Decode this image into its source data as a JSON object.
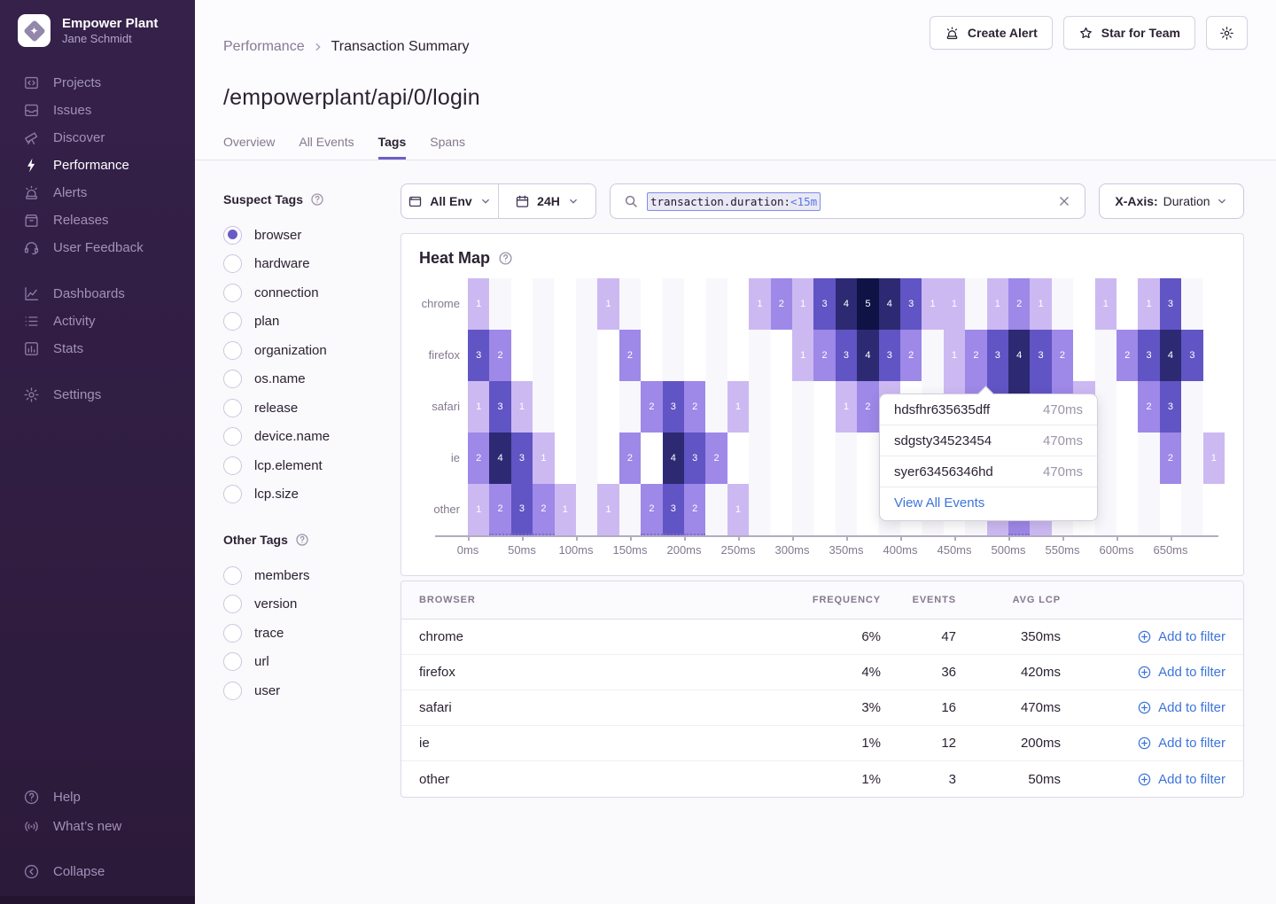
{
  "colors": {
    "accent": "#6c5fc7",
    "link": "#3d74db",
    "sidebar_bg": "#2f1d3d"
  },
  "sidebar": {
    "org": "Empower Plant",
    "user": "Jane Schmidt",
    "logo_icon": "diamond-star-icon",
    "sections": [
      {
        "items": [
          {
            "icon": "projects",
            "label": "Projects",
            "active": false
          },
          {
            "icon": "issues",
            "label": "Issues",
            "active": false
          },
          {
            "icon": "discover",
            "label": "Discover",
            "active": false
          },
          {
            "icon": "performance",
            "label": "Performance",
            "active": true
          },
          {
            "icon": "alerts",
            "label": "Alerts",
            "active": false
          },
          {
            "icon": "releases",
            "label": "Releases",
            "active": false
          },
          {
            "icon": "user-feedback",
            "label": "User Feedback",
            "active": false
          }
        ]
      },
      {
        "items": [
          {
            "icon": "dashboards",
            "label": "Dashboards",
            "active": false
          },
          {
            "icon": "activity",
            "label": "Activity",
            "active": false
          },
          {
            "icon": "stats",
            "label": "Stats",
            "active": false
          }
        ]
      },
      {
        "items": [
          {
            "icon": "settings",
            "label": "Settings",
            "active": false
          }
        ]
      }
    ],
    "footer": [
      {
        "icon": "help",
        "label": "Help"
      },
      {
        "icon": "whats-new",
        "label": "What’s new"
      }
    ],
    "collapse": {
      "icon": "collapse",
      "label": "Collapse"
    }
  },
  "header": {
    "breadcrumb": [
      "Performance",
      "Transaction Summary"
    ],
    "title": "/empowerplant/api/0/login",
    "tabs": [
      {
        "label": "Overview",
        "active": false
      },
      {
        "label": "All Events",
        "active": false
      },
      {
        "label": "Tags",
        "active": true
      },
      {
        "label": "Spans",
        "active": false
      }
    ],
    "actions": {
      "create_alert": "Create Alert",
      "star_for_team": "Star for Team",
      "settings_icon": "gear-icon"
    }
  },
  "filters": {
    "suspect": {
      "title": "Suspect Tags",
      "items": [
        {
          "label": "browser",
          "selected": true
        },
        {
          "label": "hardware",
          "selected": false
        },
        {
          "label": "connection",
          "selected": false
        },
        {
          "label": "plan",
          "selected": false
        },
        {
          "label": "organization",
          "selected": false
        },
        {
          "label": "os.name",
          "selected": false
        },
        {
          "label": "release",
          "selected": false
        },
        {
          "label": "device.name",
          "selected": false
        },
        {
          "label": "lcp.element",
          "selected": false
        },
        {
          "label": "lcp.size",
          "selected": false
        }
      ]
    },
    "other": {
      "title": "Other Tags",
      "items": [
        {
          "label": "members",
          "selected": false
        },
        {
          "label": "version",
          "selected": false
        },
        {
          "label": "trace",
          "selected": false
        },
        {
          "label": "url",
          "selected": false
        },
        {
          "label": "user",
          "selected": false
        }
      ]
    }
  },
  "controls": {
    "env": "All Env",
    "range": "24H",
    "search_token": {
      "key": "transaction.duration:",
      "value": "<15m"
    },
    "xaxis": {
      "label": "X-Axis:",
      "value": "Duration"
    }
  },
  "chart_data": {
    "type": "heatmap",
    "title": "Heat Map",
    "x_unit": "ms",
    "col_width_ms": 20,
    "n_cols": 35,
    "x_range_ms": [
      0,
      700
    ],
    "x_ticks": [
      "0ms",
      "50ms",
      "100ms",
      "150ms",
      "200ms",
      "250ms",
      "300ms",
      "350ms",
      "400ms",
      "450ms",
      "500ms",
      "550ms",
      "600ms",
      "650ms"
    ],
    "value_colors": {
      "1": "#ccb9f2",
      "2": "#9e88e8",
      "3": "#6154c4",
      "4": "#2d2a73",
      "5": "#0e1245"
    },
    "rows": [
      {
        "name": "chrome",
        "cells": [
          [
            0,
            1
          ],
          [
            6,
            1
          ],
          [
            13,
            1
          ],
          [
            14,
            2
          ],
          [
            15,
            1
          ],
          [
            16,
            3
          ],
          [
            17,
            4
          ],
          [
            18,
            5
          ],
          [
            19,
            4
          ],
          [
            20,
            3
          ],
          [
            21,
            1
          ],
          [
            22,
            1
          ],
          [
            24,
            1
          ],
          [
            25,
            2
          ],
          [
            26,
            1
          ],
          [
            29,
            1
          ],
          [
            31,
            1
          ],
          [
            32,
            3
          ]
        ]
      },
      {
        "name": "firefox",
        "cells": [
          [
            0,
            3
          ],
          [
            1,
            2
          ],
          [
            7,
            2
          ],
          [
            15,
            1
          ],
          [
            16,
            2
          ],
          [
            17,
            3
          ],
          [
            18,
            4
          ],
          [
            19,
            3
          ],
          [
            20,
            2
          ],
          [
            22,
            1
          ],
          [
            23,
            2
          ],
          [
            24,
            3
          ],
          [
            25,
            4
          ],
          [
            26,
            3
          ],
          [
            27,
            2
          ],
          [
            30,
            2
          ],
          [
            31,
            3
          ],
          [
            32,
            4
          ],
          [
            33,
            3
          ]
        ]
      },
      {
        "name": "safari",
        "cells": [
          [
            0,
            1
          ],
          [
            1,
            3
          ],
          [
            2,
            1
          ],
          [
            8,
            2
          ],
          [
            9,
            3
          ],
          [
            10,
            2
          ],
          [
            12,
            1
          ],
          [
            17,
            1
          ],
          [
            18,
            2
          ],
          [
            19,
            1
          ],
          [
            22,
            1
          ],
          [
            23,
            2
          ],
          [
            24,
            3
          ],
          [
            25,
            4
          ],
          [
            26,
            3
          ],
          [
            27,
            2
          ],
          [
            28,
            1
          ],
          [
            31,
            2
          ],
          [
            32,
            3
          ]
        ]
      },
      {
        "name": "ie",
        "cells": [
          [
            0,
            2
          ],
          [
            1,
            4
          ],
          [
            2,
            3
          ],
          [
            3,
            1
          ],
          [
            7,
            2
          ],
          [
            9,
            4
          ],
          [
            10,
            3
          ],
          [
            11,
            2
          ],
          [
            32,
            2
          ],
          [
            34,
            1
          ]
        ]
      },
      {
        "name": "other",
        "cells": [
          [
            0,
            1
          ],
          [
            1,
            2
          ],
          [
            2,
            3
          ],
          [
            3,
            2
          ],
          [
            4,
            1
          ],
          [
            6,
            1
          ],
          [
            8,
            2
          ],
          [
            9,
            3
          ],
          [
            10,
            2
          ],
          [
            12,
            1
          ],
          [
            24,
            1
          ],
          [
            25,
            2
          ],
          [
            26,
            1
          ]
        ]
      }
    ]
  },
  "tooltip": {
    "events": [
      {
        "id": "hdsfhr635635dff",
        "duration": "470ms"
      },
      {
        "id": "sdgsty34523454",
        "duration": "470ms"
      },
      {
        "id": "syer63456346hd",
        "duration": "470ms"
      }
    ],
    "action": "View All Events"
  },
  "table": {
    "headers": [
      "BROWSER",
      "FREQUENCY",
      "EVENTS",
      "AVG LCP"
    ],
    "action_label": "Add to filter",
    "rows": [
      {
        "browser": "chrome",
        "frequency": "6%",
        "events": "47",
        "avg_lcp": "350ms"
      },
      {
        "browser": "firefox",
        "frequency": "4%",
        "events": "36",
        "avg_lcp": "420ms"
      },
      {
        "browser": "safari",
        "frequency": "3%",
        "events": "16",
        "avg_lcp": "470ms"
      },
      {
        "browser": "ie",
        "frequency": "1%",
        "events": "12",
        "avg_lcp": "200ms"
      },
      {
        "browser": "other",
        "frequency": "1%",
        "events": "3",
        "avg_lcp": "50ms"
      }
    ]
  }
}
